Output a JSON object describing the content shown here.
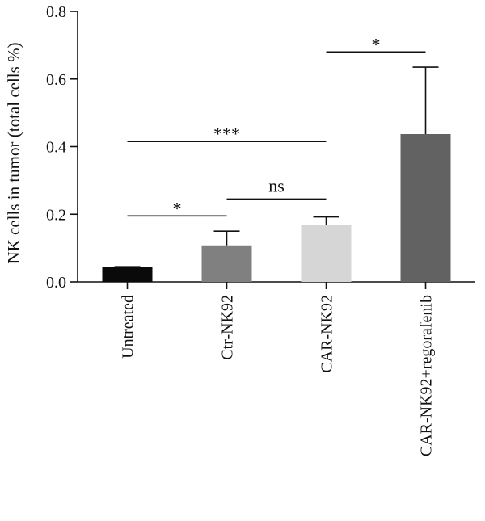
{
  "chart_data": {
    "type": "bar",
    "ylabel": "NK cells in tumor (total cells %)",
    "xlabel": "",
    "ylim": [
      0,
      0.8
    ],
    "yticks": [
      "0.0",
      "0.2",
      "0.4",
      "0.6",
      "0.8"
    ],
    "categories": [
      "Untreated",
      "Ctr-NK92",
      "CAR-NK92",
      "CAR-NK92+regorafenib"
    ],
    "values": [
      0.043,
      0.108,
      0.168,
      0.437
    ],
    "errors": [
      0.002,
      0.042,
      0.024,
      0.198
    ],
    "bar_colors": [
      "#0a0a0a",
      "#808080",
      "#d6d6d6",
      "#626262"
    ],
    "significance": [
      {
        "from": 0,
        "to": 1,
        "label": "*",
        "y": 0.195
      },
      {
        "from": 1,
        "to": 2,
        "label": "ns",
        "y": 0.245
      },
      {
        "from": 0,
        "to": 2,
        "label": "***",
        "y": 0.415
      },
      {
        "from": 2,
        "to": 3,
        "label": "*",
        "y": 0.68
      }
    ]
  }
}
